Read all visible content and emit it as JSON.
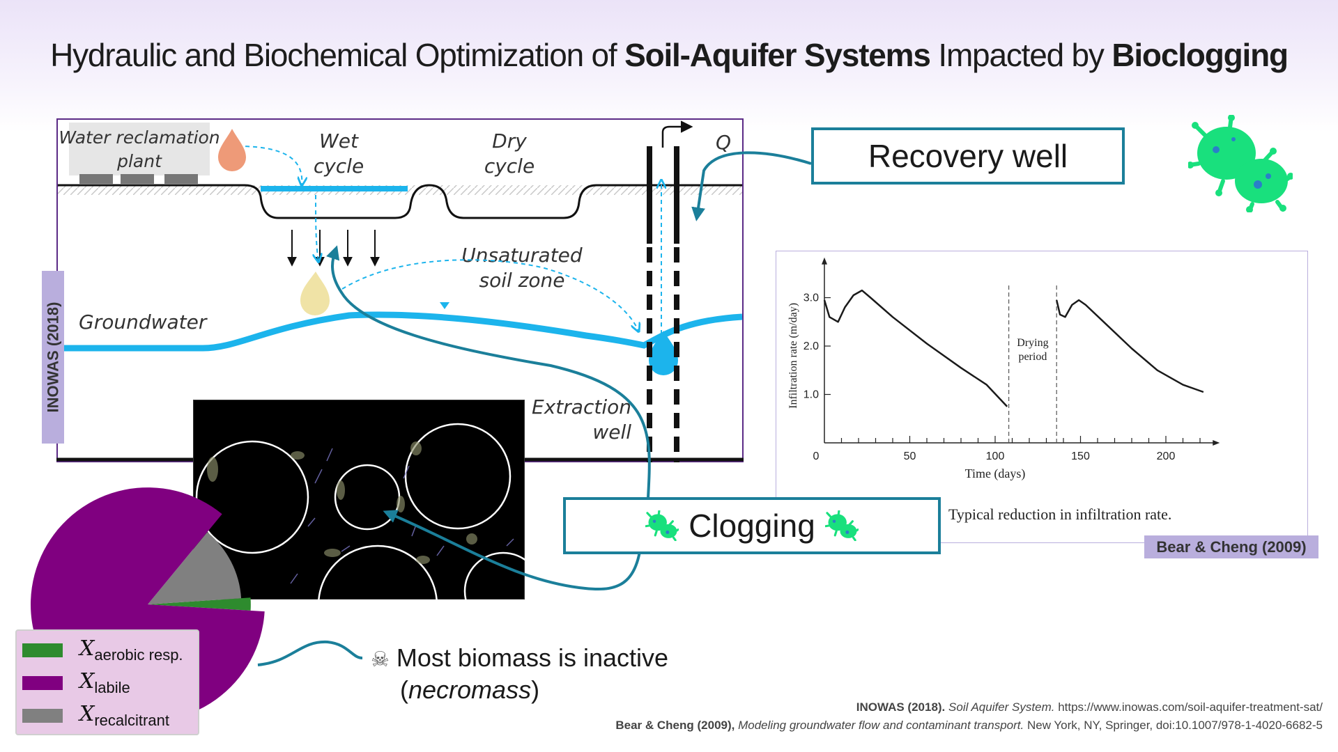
{
  "title": {
    "part1": "Hydraulic and Biochemical Optimization of ",
    "bold1": "Soil-Aquifer Systems",
    "part2": " Impacted by ",
    "bold2": "Bioclogging"
  },
  "diagram": {
    "plant_line1": "Water reclamation",
    "plant_line2": "plant",
    "wet_line1": "Wet",
    "wet_line2": "cycle",
    "dry_line1": "Dry",
    "dry_line2": "cycle",
    "flow_label": "Q",
    "unsat_line1": "Unsaturated",
    "unsat_line2": "soil zone",
    "groundwater": "Groundwater",
    "extraction_line1": "Extraction",
    "extraction_line2": "well",
    "source_tag": "INOWAS (2018)"
  },
  "recovery_well_label": "Recovery well",
  "clogging_label": "Clogging",
  "chart_data": {
    "type": "line",
    "title": "",
    "xlabel": "Time (days)",
    "ylabel": "Infiltration rate (m/day)",
    "xticks": [
      "0",
      "50",
      "100",
      "150",
      "200"
    ],
    "yticks": [
      "1.0",
      "2.0",
      "3.0"
    ],
    "xlim": [
      0,
      225
    ],
    "ylim": [
      0,
      3.6
    ],
    "annotation_line1": "Drying",
    "annotation_line2": "period",
    "caption": "Typical reduction in infiltration rate.",
    "source_tag": "Bear & Cheng (2009)",
    "series": [
      {
        "segments": [
          [
            [
              0,
              2.95
            ],
            [
              3,
              2.6
            ],
            [
              8,
              2.5
            ],
            [
              12,
              2.8
            ],
            [
              17,
              3.05
            ],
            [
              22,
              3.15
            ],
            [
              27,
              3.0
            ],
            [
              40,
              2.6
            ],
            [
              60,
              2.05
            ],
            [
              80,
              1.55
            ],
            [
              95,
              1.2
            ],
            [
              107,
              0.75
            ]
          ],
          [
            [
              136,
              2.95
            ],
            [
              138,
              2.65
            ],
            [
              141,
              2.6
            ],
            [
              145,
              2.85
            ],
            [
              149,
              2.95
            ],
            [
              153,
              2.85
            ],
            [
              165,
              2.45
            ],
            [
              180,
              1.95
            ],
            [
              195,
              1.5
            ],
            [
              210,
              1.2
            ],
            [
              222,
              1.05
            ]
          ]
        ]
      }
    ],
    "drying_period_x": [
      108,
      136
    ]
  },
  "pie_chart": {
    "type": "pie",
    "slices": [
      {
        "name": "X_aerobic resp.",
        "value": 0.02,
        "color": "#2e8b2e"
      },
      {
        "name": "X_labile",
        "value": 0.85,
        "color": "#800080"
      },
      {
        "name": "X_recalcitrant",
        "value": 0.13,
        "color": "#808080"
      }
    ]
  },
  "legend": {
    "items": [
      {
        "sym": "X",
        "sub": "aerobic resp.",
        "color": "#2e8b2e"
      },
      {
        "sym": "X",
        "sub": "labile",
        "color": "#800080"
      },
      {
        "sym": "X",
        "sub": "recalcitrant",
        "color": "#808080"
      }
    ]
  },
  "necromass": {
    "icon": "skull-crossbones-icon",
    "line1": "Most biomass is inactive",
    "line2": "necromass"
  },
  "references": {
    "ref1_bold": "INOWAS (2018).",
    "ref1_italic": "Soil Aquifer System.",
    "ref1_rest": " https://www.inowas.com/soil-aquifer-treatment-sat/",
    "ref2_bold": "Bear & Cheng (2009),",
    "ref2_italic": "Modeling groundwater flow and contaminant transport.",
    "ref2_rest": " New York, NY, Springer, doi:10.1007/978-1-4020-6682-5"
  },
  "colors": {
    "accent_teal": "#1b7f9a",
    "water_blue": "#1cb4ec",
    "tag_purple": "#b9aedd",
    "bacteria_green": "#19e07d"
  }
}
